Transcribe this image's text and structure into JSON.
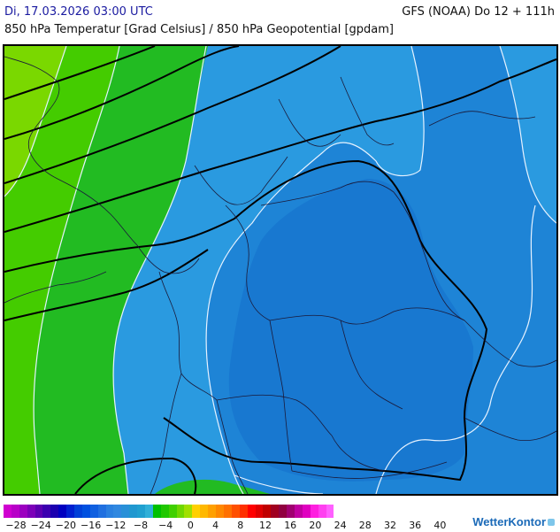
{
  "header": {
    "datetime": "Di, 17.03.2026 03:00 UTC",
    "model_run": "GFS (NOAA) Do 12 + 111h",
    "subtitle": "850 hPa Temperatur [Grad Celsius] / 850 hPa Geopotential [gpdam]"
  },
  "legend": {
    "tick_labels": [
      "−28",
      "−24",
      "−20",
      "−16",
      "−12",
      "−8",
      "−4",
      "0",
      "4",
      "8",
      "12",
      "16",
      "20",
      "24",
      "28",
      "32",
      "36",
      "40"
    ],
    "colors": [
      "#d000d0",
      "#b800c8",
      "#9c00c0",
      "#7c00b8",
      "#5c00b0",
      "#3c00b0",
      "#1c00b0",
      "#0000c0",
      "#0020d0",
      "#0040d8",
      "#0050e0",
      "#1060e0",
      "#2070e0",
      "#2a80e0",
      "#3088e0",
      "#2890d8",
      "#2098d0",
      "#20a0d0",
      "#30b0d8",
      "#00c000",
      "#20c800",
      "#40d000",
      "#70d800",
      "#a0e000",
      "#ffd000",
      "#ffb800",
      "#ffa000",
      "#ff8800",
      "#ff7000",
      "#ff5000",
      "#ff3000",
      "#ff0000",
      "#e00000",
      "#c00000",
      "#a00020",
      "#900040",
      "#a00070",
      "#c000a0",
      "#e000c0",
      "#ff20e0",
      "#ff40f0",
      "#ff60ff"
    ]
  },
  "brand": {
    "name": "WetterKontor"
  },
  "map": {
    "background_color": "#1e84d6",
    "icons": [
      "isotherm-lines",
      "geopotential-contours",
      "country-borders",
      "coastlines"
    ]
  }
}
